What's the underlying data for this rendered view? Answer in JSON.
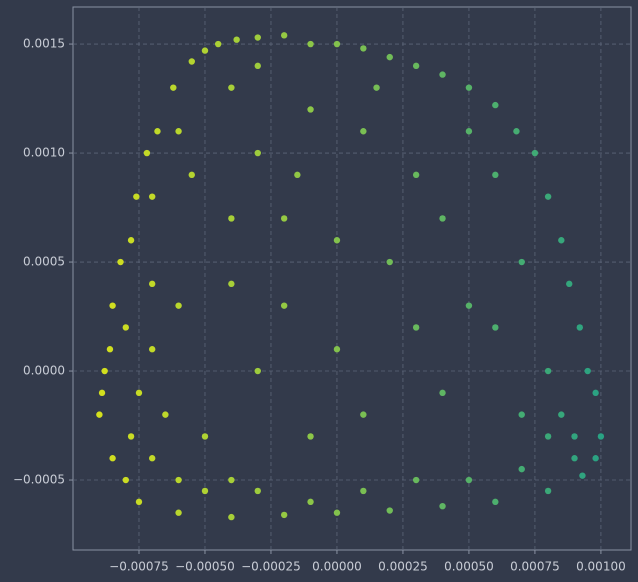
{
  "chart_data": {
    "type": "scatter",
    "x": [
      -0.0009,
      -0.00089,
      -0.00088,
      -0.00086,
      -0.00085,
      -0.00082,
      -0.00078,
      -0.00076,
      -0.00072,
      -0.00068,
      -0.00062,
      -0.00055,
      -0.0005,
      -0.00045,
      -0.00038,
      -0.0003,
      -0.0002,
      -0.0001,
      0.0,
      0.0001,
      0.0002,
      0.0003,
      0.0004,
      0.0005,
      0.0006,
      0.00068,
      0.00075,
      0.0008,
      0.00085,
      0.00088,
      0.00092,
      0.00095,
      0.00098,
      0.001,
      0.00098,
      0.00093,
      0.0008,
      0.0006,
      0.0004,
      0.0002,
      0.0,
      -0.0002,
      -0.0004,
      -0.0006,
      -0.00075,
      -0.00085,
      -0.0008,
      -0.00078,
      -0.0007,
      -0.0006,
      -0.0005,
      -0.00075,
      -0.0007,
      -0.00065,
      -0.0008,
      -0.0007,
      -0.0006,
      -0.0005,
      -0.0004,
      -0.0003,
      -0.0001,
      0.0001,
      0.0003,
      0.0005,
      0.0007,
      0.0008,
      0.00085,
      0.0009,
      0.0009,
      0.0007,
      0.0008,
      0.0006,
      0.0007,
      0.0006,
      0.0005,
      -0.0007,
      -0.0006,
      -0.00055,
      -0.0004,
      -0.0003,
      -0.0003,
      -0.0001,
      0.0001,
      0.0003,
      -0.0002,
      0.0,
      0.0002,
      0.0004,
      -0.0004,
      -0.0002,
      0.0,
      0.0003,
      0.0005,
      -0.0003,
      0.0001,
      0.0004,
      -0.0001,
      -0.0004,
      0.00015,
      -0.00015
    ],
    "y": [
      -0.0002,
      -0.0001,
      0.0,
      0.0001,
      0.0003,
      0.0005,
      0.0006,
      0.0008,
      0.001,
      0.0011,
      0.0013,
      0.00142,
      0.00147,
      0.0015,
      0.00152,
      0.00153,
      0.00154,
      0.0015,
      0.0015,
      0.00148,
      0.00144,
      0.0014,
      0.00136,
      0.0013,
      0.00122,
      0.0011,
      0.001,
      0.0008,
      0.0006,
      0.0004,
      0.0002,
      0.0,
      -0.0001,
      -0.0003,
      -0.0004,
      -0.00048,
      -0.00055,
      -0.0006,
      -0.00062,
      -0.00064,
      -0.00065,
      -0.00066,
      -0.00067,
      -0.00065,
      -0.0006,
      -0.0004,
      -0.0005,
      -0.0003,
      -0.0004,
      -0.0005,
      -0.00055,
      -0.0001,
      0.0001,
      -0.0002,
      0.0002,
      0.0004,
      0.0003,
      -0.0003,
      -0.0005,
      -0.00055,
      -0.0006,
      -0.00055,
      -0.0005,
      -0.0005,
      -0.00045,
      -0.0003,
      -0.0002,
      -0.0004,
      -0.0003,
      -0.0002,
      0.0,
      0.0002,
      0.0005,
      0.0009,
      0.0011,
      0.0008,
      0.0011,
      0.0009,
      0.0013,
      0.0014,
      0.001,
      0.0012,
      0.0011,
      0.0009,
      0.0007,
      0.0006,
      0.0005,
      0.0007,
      0.0004,
      0.0003,
      0.0001,
      0.0002,
      0.0003,
      0.0,
      -0.0002,
      -0.0001,
      -0.0003,
      0.0007,
      0.0013,
      0.0009
    ],
    "colormap": [
      "#dde318",
      "#1f9e89"
    ],
    "color_by": "x",
    "xlim": [
      -0.001,
      0.001114
    ],
    "ylim": [
      -0.000821,
      0.00167
    ],
    "xticks": [
      {
        "value": -0.00075,
        "label": "−0.00075"
      },
      {
        "value": -0.0005,
        "label": "−0.00050"
      },
      {
        "value": -0.00025,
        "label": "−0.00025"
      },
      {
        "value": 0,
        "label": "0.00000"
      },
      0.00025,
      {
        "value": 0.0005,
        "label": "0.00050"
      },
      0.00075,
      {
        "value": 0.001,
        "label": "0.00100"
      }
    ],
    "yticks": [
      {
        "value": -0.0005,
        "label": "−0.0005"
      },
      {
        "value": 0,
        "label": "0.0000"
      },
      0.0005,
      {
        "value": 0.001,
        "label": "0.0010"
      },
      0.0015
    ],
    "grid": true
  }
}
